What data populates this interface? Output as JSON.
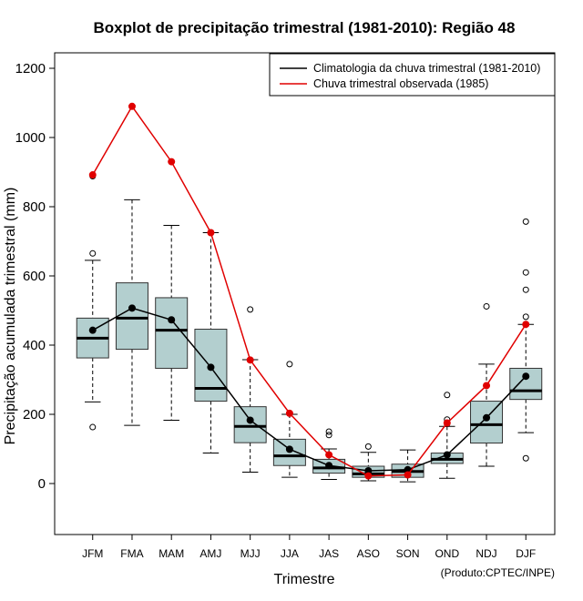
{
  "chart_data": {
    "type": "boxplot",
    "title": "Boxplot de precipitação trimestral (1981-2010): Região 48",
    "xlabel": "Trimestre",
    "ylabel": "Precipitação acumulada trimestral (mm)",
    "ylim": [
      -150,
      1250
    ],
    "yticks": [
      0,
      200,
      400,
      600,
      800,
      1000,
      1200
    ],
    "categories": [
      "JFM",
      "FMA",
      "MAM",
      "AMJ",
      "MJJ",
      "JJA",
      "JAS",
      "ASO",
      "SON",
      "OND",
      "NDJ",
      "DJF"
    ],
    "boxes": [
      {
        "min": 236,
        "q1": 363,
        "median": 420,
        "q3": 478,
        "max": 645,
        "outliers": [
          163,
          665,
          888
        ]
      },
      {
        "min": 168,
        "q1": 388,
        "median": 478,
        "q3": 580,
        "max": 820,
        "outliers": []
      },
      {
        "min": 183,
        "q1": 333,
        "median": 443,
        "q3": 537,
        "max": 746,
        "outliers": []
      },
      {
        "min": 88,
        "q1": 238,
        "median": 275,
        "q3": 446,
        "max": 725,
        "outliers": []
      },
      {
        "min": 33,
        "q1": 118,
        "median": 165,
        "q3": 222,
        "max": 358,
        "outliers": [
          503
        ]
      },
      {
        "min": 18,
        "q1": 52,
        "median": 80,
        "q3": 128,
        "max": 200,
        "outliers": [
          345
        ]
      },
      {
        "min": 12,
        "q1": 30,
        "median": 45,
        "q3": 70,
        "max": 100,
        "outliers": [
          140,
          150
        ]
      },
      {
        "min": 8,
        "q1": 18,
        "median": 28,
        "q3": 50,
        "max": 90,
        "outliers": [
          107
        ]
      },
      {
        "min": 5,
        "q1": 18,
        "median": 35,
        "q3": 56,
        "max": 97,
        "outliers": []
      },
      {
        "min": 15,
        "q1": 58,
        "median": 70,
        "q3": 88,
        "max": 165,
        "outliers": [
          172,
          185,
          256
        ]
      },
      {
        "min": 50,
        "q1": 117,
        "median": 170,
        "q3": 238,
        "max": 345,
        "outliers": [
          512
        ]
      },
      {
        "min": 147,
        "q1": 243,
        "median": 268,
        "q3": 333,
        "max": 460,
        "outliers": [
          73,
          482,
          560,
          610,
          757
        ]
      }
    ],
    "series": [
      {
        "name": "Climatologia da chuva trimestral (1981-2010)",
        "color": "#000000",
        "values": [
          443,
          507,
          473,
          336,
          183,
          99,
          52,
          37,
          40,
          83,
          190,
          310
        ]
      },
      {
        "name": "Chuva trimestral observada (1985)",
        "color": "#e00000",
        "values": [
          892,
          1090,
          930,
          725,
          357,
          203,
          83,
          22,
          25,
          175,
          283,
          460
        ]
      }
    ],
    "box_fill": "#b3cfcf",
    "legend_position": "top-right",
    "credit": "(Produto:CPTEC/INPE)"
  }
}
